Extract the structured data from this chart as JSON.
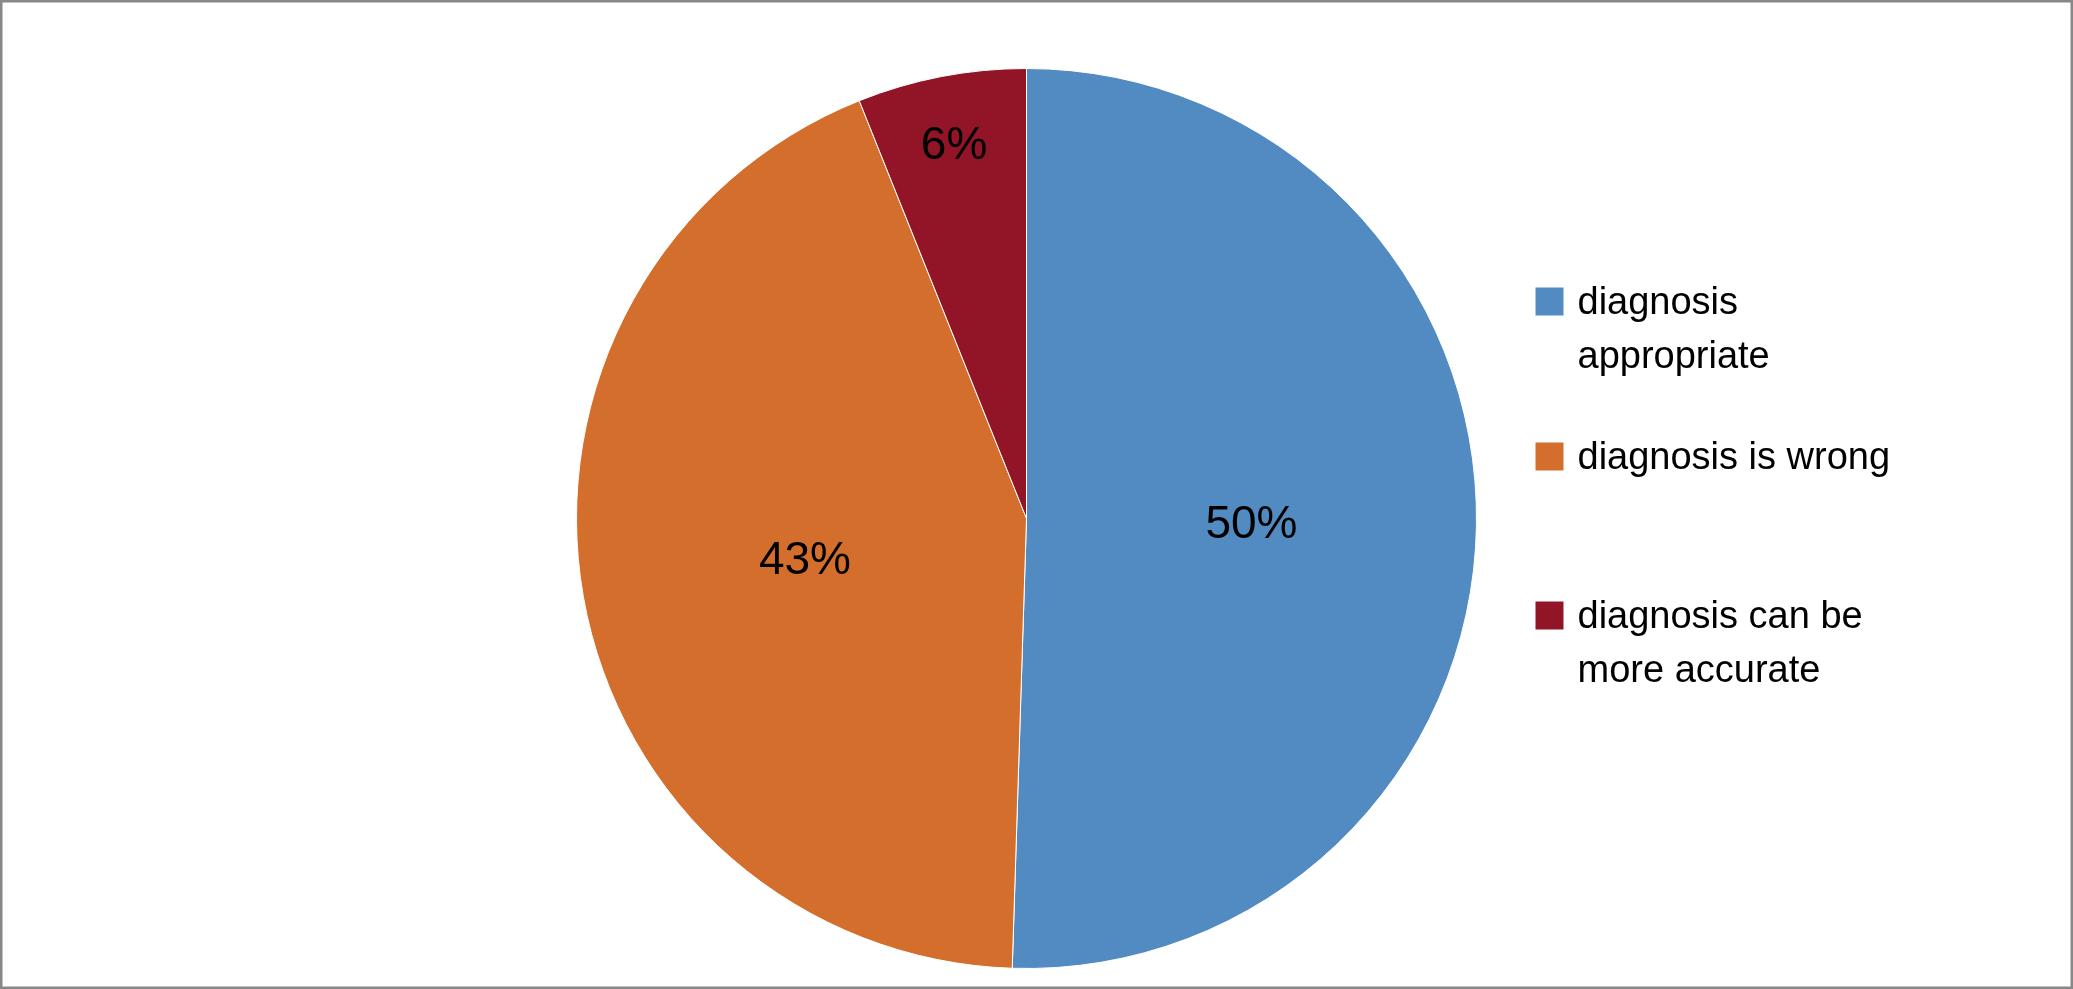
{
  "chart_data": {
    "type": "pie",
    "categories": [
      "diagnosis appropriate",
      "diagnosis is wrong",
      "diagnosis can be more accurate"
    ],
    "values": [
      50,
      43,
      6
    ],
    "colors": [
      "#528bc1",
      "#d46e2c",
      "#921427"
    ],
    "value_labels": [
      "50%",
      "43%",
      "6%"
    ],
    "legend": "right"
  }
}
